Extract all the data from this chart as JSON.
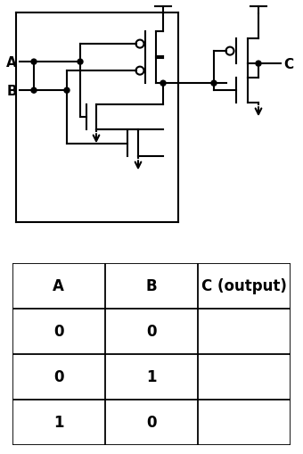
{
  "background_color": "#ffffff",
  "table_headers": [
    "A",
    "B",
    "C (output)"
  ],
  "table_rows": [
    [
      "0",
      "0",
      ""
    ],
    [
      "0",
      "1",
      ""
    ],
    [
      "1",
      "0",
      ""
    ]
  ],
  "header_fontsize": 12,
  "cell_fontsize": 12,
  "label_A": "A",
  "label_B": "B",
  "label_C": "C",
  "fig_width": 3.4,
  "fig_height": 5.1,
  "dpi": 100,
  "lw": 1.5
}
